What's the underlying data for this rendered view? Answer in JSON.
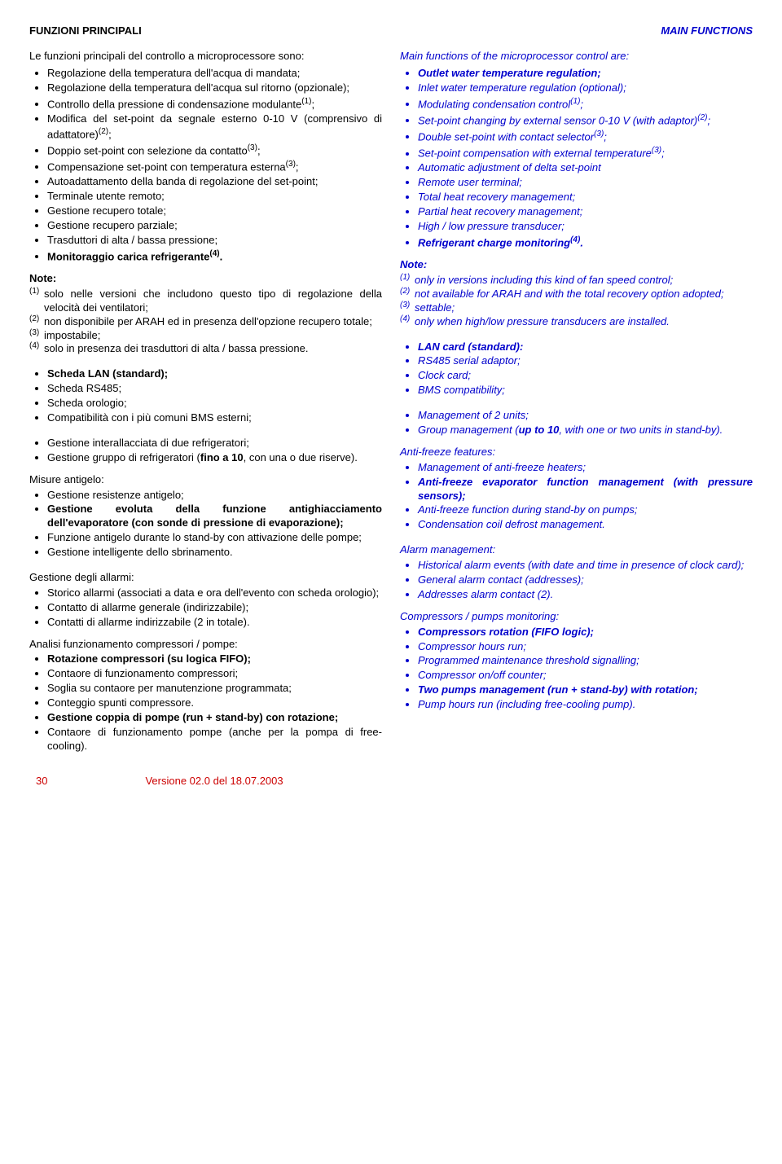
{
  "header": {
    "left": "FUNZIONI PRINCIPALI",
    "right": "MAIN FUNCTIONS"
  },
  "left": {
    "intro": "Le funzioni principali del controllo a microprocessore sono:",
    "bullets1": [
      {
        "t": "Regolazione della temperatura dell'acqua di mandata;"
      },
      {
        "t": "Regolazione della temperatura dell'acqua sul ritorno (opzionale);"
      },
      {
        "t": "Controllo della pressione di condensazione modulante",
        "sup": "(1)",
        "after": ";"
      },
      {
        "t": "Modifica del set-point da segnale esterno 0-10 V (comprensivo di adattatore)",
        "sup": "(2)",
        "after": ";"
      },
      {
        "t": "Doppio set-point con selezione da contatto",
        "sup": "(3)",
        "after": ";"
      },
      {
        "t": "Compensazione set-point con temperatura esterna",
        "sup": "(3)",
        "after": ";"
      },
      {
        "t": "Autoadattamento della banda di regolazione del set-point;"
      },
      {
        "t": "Terminale utente remoto;"
      },
      {
        "t": "Gestione recupero totale;"
      },
      {
        "t": "Gestione recupero parziale;"
      },
      {
        "t": "Trasduttori di alta / bassa pressione;"
      },
      {
        "t": "Monitoraggio carica refrigerante",
        "sup": "(4)",
        "after": ".",
        "bold": true
      }
    ],
    "note_head": "Note:",
    "notes": [
      {
        "n": "(1)",
        "t": "solo nelle versioni che includono questo tipo di regolazione della velocità dei ventilatori;"
      },
      {
        "n": "(2)",
        "t": "non disponibile per ARAH ed in presenza dell'opzione recupero totale;"
      },
      {
        "n": "(3)",
        "t": "impostabile;"
      },
      {
        "n": "(4)",
        "t": "solo in presenza dei trasduttori di alta / bassa pressione."
      }
    ],
    "bullets2": [
      {
        "t": "Scheda LAN (standard);",
        "bold": true
      },
      {
        "t": "Scheda RS485;"
      },
      {
        "t": "Scheda orologio;"
      },
      {
        "t": "Compatibilità con i più comuni BMS esterni;"
      }
    ],
    "bullets3": [
      {
        "t": "Gestione interallacciata di due refrigeratori;"
      },
      {
        "pre": "Gestione gruppo di refrigeratori (",
        "bold": "fino a 10",
        "post": ", con una o due riserve)."
      }
    ],
    "antifreeze_head": "Misure antigelo:",
    "bullets4": [
      {
        "t": "Gestione resistenze antigelo;"
      },
      {
        "t": "Gestione evoluta della funzione antighiacciamento dell'evaporatore (con sonde di pressione di evaporazione);",
        "bold": true
      },
      {
        "t": "Funzione antigelo durante lo stand-by con attivazione delle pompe;"
      },
      {
        "t": "Gestione intelligente dello sbrinamento."
      }
    ],
    "alarm_head": "Gestione degli allarmi:",
    "bullets5": [
      {
        "t": "Storico allarmi (associati a data e ora dell'evento con scheda orologio);"
      },
      {
        "t": "Contatto di allarme generale (indirizzabile);"
      },
      {
        "t": "Contatti di allarme indirizzabile (2 in totale)."
      }
    ],
    "comp_head": "Analisi funzionamento compressori / pompe:",
    "bullets6": [
      {
        "t": "Rotazione compressori (su logica FIFO);",
        "bold": true
      },
      {
        "t": "Contaore di funzionamento compressori;"
      },
      {
        "t": "Soglia su contaore per manutenzione programmata;"
      },
      {
        "t": "Conteggio spunti compressore."
      },
      {
        "t": "Gestione coppia di pompe (run + stand-by) con rotazione;",
        "bold": true
      },
      {
        "t": "Contaore di funzionamento pompe (anche per la pompa di free-cooling)."
      }
    ]
  },
  "right": {
    "intro": "Main functions of the microprocessor control are:",
    "bullets1": [
      {
        "t": "Outlet water temperature regulation;",
        "bold": true
      },
      {
        "t": "Inlet water temperature regulation (optional);"
      },
      {
        "t": "Modulating condensation control",
        "sup": "(1)",
        "after": ";"
      },
      {
        "t": "Set-point changing by external sensor 0-10 V (with adaptor)",
        "sup": "(2)",
        "after": ";"
      },
      {
        "t": "Double set-point with contact selector",
        "sup": "(3)",
        "after": ";"
      },
      {
        "t": "Set-point compensation with external temperature",
        "sup": "(3)",
        "after": ";"
      },
      {
        "t": "Automatic adjustment of delta set-point"
      },
      {
        "t": "Remote user terminal;"
      },
      {
        "t": "Total heat recovery management;"
      },
      {
        "t": "Partial heat recovery management;"
      },
      {
        "t": "High / low pressure transducer;"
      },
      {
        "t": "Refrigerant charge monitoring",
        "sup": "(4)",
        "after": ".",
        "bold": true
      }
    ],
    "note_head": "Note:",
    "notes": [
      {
        "n": "(1)",
        "t": "only in versions including this kind of fan speed control;"
      },
      {
        "n": "(2)",
        "t": "not available for ARAH and with the total recovery option adopted;"
      },
      {
        "n": "(3)",
        "t": "settable;"
      },
      {
        "n": "(4)",
        "t": "only when high/low pressure transducers are installed."
      }
    ],
    "bullets2": [
      {
        "t": "LAN card (standard):",
        "bold": true
      },
      {
        "t": "RS485 serial adaptor;"
      },
      {
        "t": "Clock card;"
      },
      {
        "t": "BMS compatibility;"
      }
    ],
    "bullets3": [
      {
        "t": "Management of 2 units;"
      },
      {
        "pre": "Group management (",
        "bold": "up to 10",
        "post": ", with one or two units in stand-by)."
      }
    ],
    "antifreeze_head": "Anti-freeze features:",
    "bullets4": [
      {
        "t": "Management of anti-freeze heaters;"
      },
      {
        "t": "Anti-freeze evaporator function management (with pressure sensors);",
        "bold": true
      },
      {
        "t": "Anti-freeze function during stand-by on pumps;"
      },
      {
        "t": " Condensation coil defrost management."
      }
    ],
    "alarm_head": "Alarm management:",
    "bullets5": [
      {
        "t": "Historical alarm events (with date and time in presence of clock card);"
      },
      {
        "t": "General alarm contact  (addresses);"
      },
      {
        "t": "Addresses alarm contact (2)."
      }
    ],
    "comp_head": "Compressors / pumps monitoring:",
    "bullets6": [
      {
        "t": "Compressors rotation (FIFO logic);",
        "bold": true
      },
      {
        "t": "Compressor hours run;"
      },
      {
        "t": "Programmed maintenance threshold signalling;"
      },
      {
        "t": "Compressor on/off counter;"
      },
      {
        "t": "Two pumps management (run + stand-by) with rotation;",
        "bold": true
      },
      {
        "t": "Pump hours run (including free-cooling pump)."
      }
    ]
  },
  "footer": {
    "page": "30",
    "version": "Versione 02.0 del 18.07.2003"
  }
}
